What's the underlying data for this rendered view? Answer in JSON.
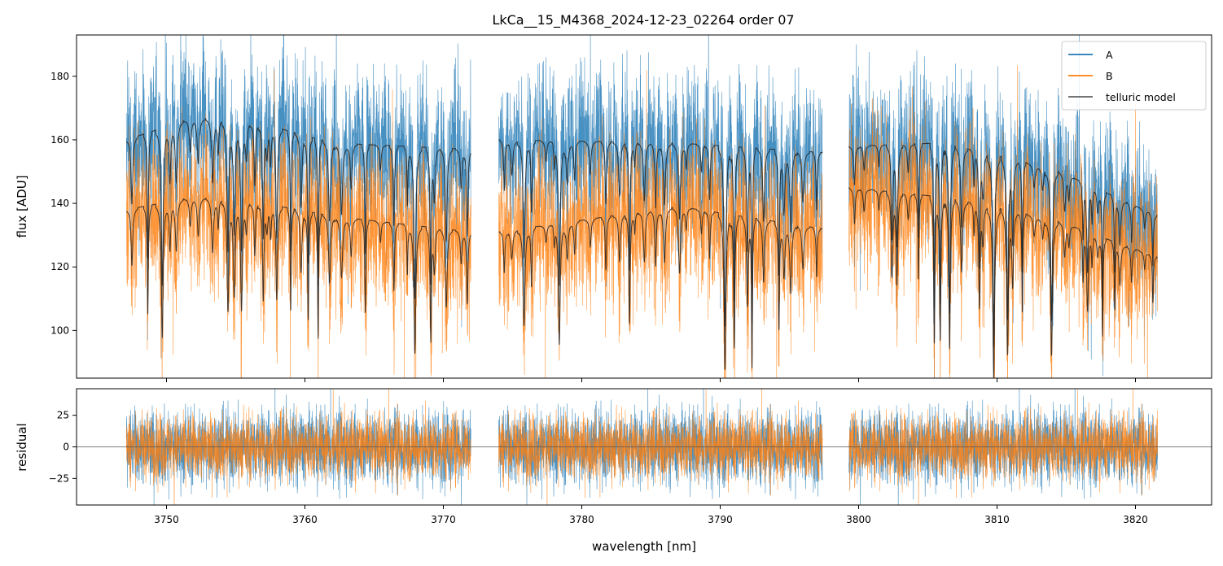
{
  "chart_data": {
    "type": "line",
    "title": "LkCa__15_M4368_2024-12-23_02264  order 07",
    "xlabel": "wavelength [nm]",
    "x_range": [
      3743.5,
      3825.5
    ],
    "x_ticks": [
      3750,
      3760,
      3770,
      3780,
      3790,
      3800,
      3810,
      3820
    ],
    "segments": [
      [
        3747.1,
        3772.0
      ],
      [
        3774.0,
        3797.4
      ],
      [
        3799.3,
        3821.6
      ]
    ],
    "colors": {
      "A": "#1f77b4",
      "B": "#ff7f0e",
      "model": "#222222",
      "zero_line": "#555555"
    },
    "legend": {
      "location": "top-right",
      "entries": [
        "A",
        "B",
        "telluric model"
      ]
    },
    "flux_panel": {
      "ylabel": "flux [ADU]",
      "ylim": [
        85,
        193
      ],
      "yticks": [
        100,
        120,
        140,
        160,
        180
      ],
      "series": [
        {
          "name": "A",
          "continuum_start": 162,
          "continuum_end": 148,
          "noise_amplitude": 22
        },
        {
          "name": "B",
          "continuum_start": 140,
          "continuum_end": 128,
          "noise_amplitude": 22
        }
      ],
      "telluric_model": [
        {
          "fiber": "A",
          "continuum": [
            [
              3747.1,
              160
            ],
            [
              3752,
              167
            ],
            [
              3757,
              165
            ],
            [
              3762,
              159
            ],
            [
              3772,
              157
            ],
            [
              3774,
              160
            ],
            [
              3787,
              159
            ],
            [
              3797.4,
              156
            ],
            [
              3799.3,
              158
            ],
            [
              3806,
              159
            ],
            [
              3814,
              151
            ],
            [
              3821.6,
              136
            ]
          ]
        },
        {
          "fiber": "B",
          "continuum": [
            [
              3747.1,
              138
            ],
            [
              3752,
              142
            ],
            [
              3757,
              140
            ],
            [
              3762,
              136
            ],
            [
              3772,
              131
            ],
            [
              3774,
              131
            ],
            [
              3787,
              139
            ],
            [
              3797.4,
              132
            ],
            [
              3799.3,
              145
            ],
            [
              3806,
              142
            ],
            [
              3814,
              135
            ],
            [
              3821.6,
              123
            ]
          ]
        }
      ]
    },
    "residual_panel": {
      "ylabel": "residual",
      "ylim": [
        -46,
        46
      ],
      "yticks": [
        -25,
        0,
        25
      ],
      "series": [
        {
          "name": "A",
          "noise_amplitude": 40
        },
        {
          "name": "B",
          "noise_amplitude": 34
        }
      ]
    }
  }
}
